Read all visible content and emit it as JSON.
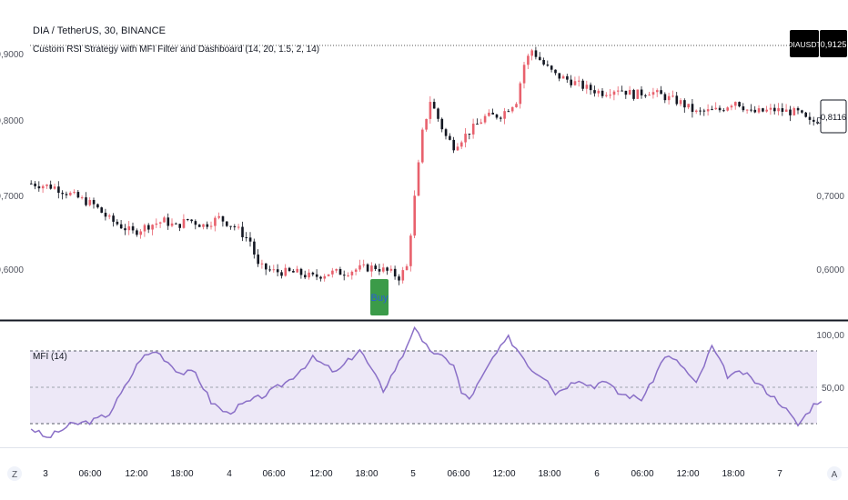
{
  "header": {
    "symbol_line": "DIA / TetherUS, 30, BINANCE",
    "strategy_line": "Custom RSI Strategy with MFI Filter and Dashboard (14, 20, 1.5, 2, 14)"
  },
  "price_axis": {
    "labels": [
      "0,9000",
      "0,8000",
      "0,7000",
      "0,6000"
    ],
    "symbol_tag": "DIAUSDT",
    "last_price_tag": "0,9125",
    "current_price_tag": "0,8116"
  },
  "signal": {
    "label": "Buy"
  },
  "indicator": {
    "label": "MFI (14)",
    "axis_labels": [
      "100,00",
      "50,00"
    ]
  },
  "time_axis": {
    "left_button": "Z",
    "right_button": "A",
    "labels": [
      "3",
      "06:00",
      "12:00",
      "18:00",
      "4",
      "06:00",
      "12:00",
      "18:00",
      "5",
      "06:00",
      "12:00",
      "18:00",
      "6",
      "06:00",
      "12:00",
      "18:00",
      "7"
    ]
  },
  "colors": {
    "up": "#e8616d",
    "down": "#131722",
    "mfi_line": "#8a6fc7",
    "mfi_band": "#ede8f7",
    "signal_bg": "#3b9b49"
  },
  "chart_data": {
    "type": "candlestick",
    "symbol": "DIA/USDT",
    "interval": "30",
    "exchange": "BINANCE",
    "y_ticks": [
      0.9,
      0.8,
      0.7,
      0.6
    ],
    "ylim": [
      0.565,
      0.935
    ],
    "last_price": 0.9125,
    "current_price": 0.8116,
    "x_ticks": [
      "3",
      "06:00",
      "12:00",
      "18:00",
      "4",
      "06:00",
      "12:00",
      "18:00",
      "5",
      "06:00",
      "12:00",
      "18:00",
      "6",
      "06:00",
      "12:00",
      "18:00",
      "7"
    ],
    "price_path": [
      [
        0,
        0.72
      ],
      [
        6,
        0.715
      ],
      [
        10,
        0.705
      ],
      [
        16,
        0.69
      ],
      [
        20,
        0.67
      ],
      [
        26,
        0.652
      ],
      [
        30,
        0.662
      ],
      [
        34,
        0.668
      ],
      [
        37,
        0.66
      ],
      [
        40,
        0.67
      ],
      [
        44,
        0.662
      ],
      [
        48,
        0.672
      ],
      [
        52,
        0.66
      ],
      [
        56,
        0.64
      ],
      [
        58,
        0.605
      ],
      [
        62,
        0.598
      ],
      [
        68,
        0.596
      ],
      [
        72,
        0.59
      ],
      [
        76,
        0.596
      ],
      [
        80,
        0.597
      ],
      [
        84,
        0.602
      ],
      [
        88,
        0.604
      ],
      [
        92,
        0.596
      ],
      [
        94,
        0.59
      ],
      [
        96,
        0.604
      ],
      [
        98,
        0.7
      ],
      [
        100,
        0.79
      ],
      [
        102,
        0.835
      ],
      [
        104,
        0.81
      ],
      [
        106,
        0.785
      ],
      [
        108,
        0.772
      ],
      [
        112,
        0.792
      ],
      [
        116,
        0.812
      ],
      [
        120,
        0.815
      ],
      [
        124,
        0.835
      ],
      [
        126,
        0.885
      ],
      [
        128,
        0.905
      ],
      [
        131,
        0.885
      ],
      [
        134,
        0.87
      ],
      [
        138,
        0.862
      ],
      [
        142,
        0.852
      ],
      [
        146,
        0.846
      ],
      [
        150,
        0.852
      ],
      [
        154,
        0.843
      ],
      [
        158,
        0.848
      ],
      [
        162,
        0.84
      ],
      [
        166,
        0.832
      ],
      [
        170,
        0.818
      ],
      [
        176,
        0.822
      ],
      [
        180,
        0.835
      ],
      [
        184,
        0.818
      ],
      [
        190,
        0.822
      ],
      [
        196,
        0.818
      ],
      [
        199,
        0.804
      ],
      [
        203,
        0.812
      ]
    ],
    "mfi": {
      "period": 14,
      "ylim": [
        0,
        100
      ],
      "bands": [
        80,
        50,
        20
      ],
      "y_ticks": [
        100,
        50
      ],
      "path": [
        [
          0,
          22
        ],
        [
          4,
          15
        ],
        [
          10,
          24
        ],
        [
          16,
          27
        ],
        [
          20,
          32
        ],
        [
          24,
          50
        ],
        [
          28,
          70
        ],
        [
          32,
          75
        ],
        [
          38,
          60
        ],
        [
          42,
          60
        ],
        [
          46,
          40
        ],
        [
          50,
          32
        ],
        [
          54,
          38
        ],
        [
          60,
          45
        ],
        [
          66,
          55
        ],
        [
          72,
          70
        ],
        [
          78,
          60
        ],
        [
          84,
          76
        ],
        [
          90,
          48
        ],
        [
          95,
          72
        ],
        [
          98,
          92
        ],
        [
          100,
          80
        ],
        [
          104,
          72
        ],
        [
          108,
          66
        ],
        [
          110,
          46
        ],
        [
          112,
          42
        ],
        [
          116,
          60
        ],
        [
          118,
          70
        ],
        [
          122,
          84
        ],
        [
          126,
          70
        ],
        [
          128,
          62
        ],
        [
          132,
          56
        ],
        [
          134,
          46
        ],
        [
          140,
          56
        ],
        [
          144,
          50
        ],
        [
          146,
          56
        ],
        [
          150,
          46
        ],
        [
          156,
          42
        ],
        [
          158,
          50
        ],
        [
          162,
          72
        ],
        [
          166,
          66
        ],
        [
          170,
          52
        ],
        [
          174,
          78
        ],
        [
          178,
          58
        ],
        [
          182,
          60
        ],
        [
          186,
          52
        ],
        [
          192,
          38
        ],
        [
          196,
          24
        ],
        [
          200,
          38
        ],
        [
          202,
          42
        ]
      ]
    }
  }
}
